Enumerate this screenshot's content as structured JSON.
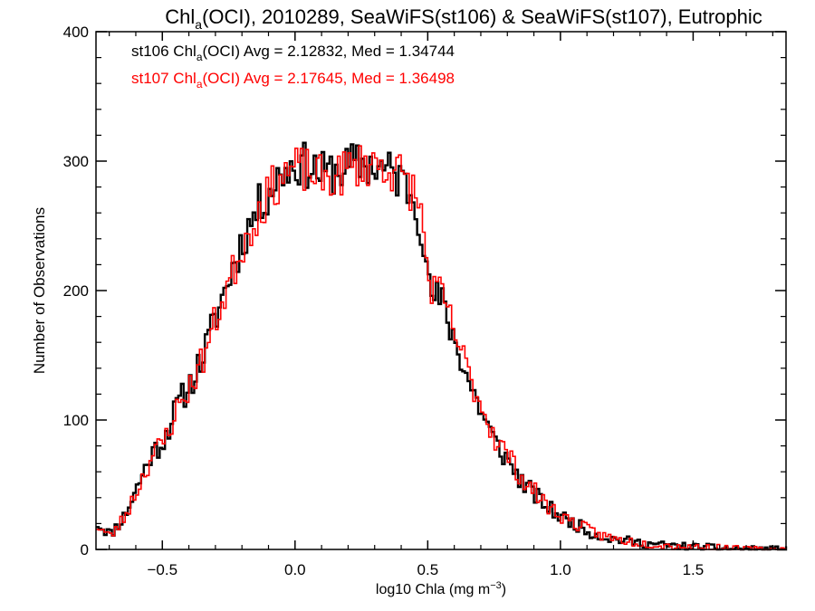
{
  "chart_data": {
    "type": "line",
    "title": "Chlₐ(OCI), 2010289, SeaWiFS(st106) & SeaWiFS(st107), Eutrophic",
    "title_parts": {
      "before_sub": "Chl",
      "sub": "a",
      "after_sub": "(OCI), 2010289, SeaWiFS(st106) & SeaWiFS(st107), Eutrophic"
    },
    "xlabel": "log10 Chla (mg m⁻³)",
    "xlabel_parts": {
      "base": "log10 Chla (mg m",
      "sup": "−3",
      "close": ")"
    },
    "ylabel": "Number of Observations",
    "xlim": [
      -0.75,
      1.85
    ],
    "ylim": [
      0,
      400
    ],
    "xticks": [
      -0.5,
      0.0,
      0.5,
      1.0,
      1.5
    ],
    "xtick_labels": [
      "−0.5",
      "0.0",
      "0.5",
      "1.0",
      "1.5"
    ],
    "yticks": [
      0,
      100,
      200,
      300,
      400
    ],
    "ytick_labels": [
      "0",
      "100",
      "200",
      "300",
      "400"
    ],
    "step": 0.01,
    "colors": {
      "st106": "#000000",
      "st107": "#ff0000"
    },
    "series": [
      {
        "name": "st106",
        "stats_text": {
          "before_sub": "st106 Chl",
          "sub": "a",
          "after_sub": "(OCI) Avg = 2.12832, Med = 1.34744"
        },
        "anchors": [
          [
            -0.75,
            20
          ],
          [
            -0.7,
            12
          ],
          [
            -0.65,
            25
          ],
          [
            -0.6,
            48
          ],
          [
            -0.55,
            72
          ],
          [
            -0.5,
            85
          ],
          [
            -0.45,
            110
          ],
          [
            -0.4,
            128
          ],
          [
            -0.35,
            150
          ],
          [
            -0.3,
            182
          ],
          [
            -0.25,
            212
          ],
          [
            -0.2,
            240
          ],
          [
            -0.15,
            262
          ],
          [
            -0.1,
            278
          ],
          [
            -0.05,
            292
          ],
          [
            0.0,
            298
          ],
          [
            0.05,
            296
          ],
          [
            0.1,
            290
          ],
          [
            0.15,
            292
          ],
          [
            0.2,
            296
          ],
          [
            0.25,
            298
          ],
          [
            0.3,
            296
          ],
          [
            0.35,
            292
          ],
          [
            0.4,
            285
          ],
          [
            0.45,
            270
          ],
          [
            0.48,
            240
          ],
          [
            0.5,
            200
          ],
          [
            0.55,
            190
          ],
          [
            0.6,
            160
          ],
          [
            0.65,
            130
          ],
          [
            0.7,
            105
          ],
          [
            0.75,
            82
          ],
          [
            0.8,
            68
          ],
          [
            0.85,
            52
          ],
          [
            0.9,
            42
          ],
          [
            0.95,
            32
          ],
          [
            1.0,
            25
          ],
          [
            1.05,
            20
          ],
          [
            1.1,
            14
          ],
          [
            1.15,
            10
          ],
          [
            1.2,
            8
          ],
          [
            1.3,
            5
          ],
          [
            1.4,
            3
          ],
          [
            1.5,
            2
          ],
          [
            1.6,
            1
          ],
          [
            1.7,
            0
          ],
          [
            1.85,
            0
          ]
        ],
        "noise": 18,
        "seed": 11
      },
      {
        "name": "st107",
        "stats_text": {
          "before_sub": "st107 Chl",
          "sub": "a",
          "after_sub": "(OCI) Avg = 2.17645, Med = 1.36498"
        },
        "anchors": [
          [
            -0.75,
            18
          ],
          [
            -0.7,
            10
          ],
          [
            -0.65,
            24
          ],
          [
            -0.6,
            46
          ],
          [
            -0.55,
            70
          ],
          [
            -0.5,
            83
          ],
          [
            -0.45,
            108
          ],
          [
            -0.4,
            126
          ],
          [
            -0.35,
            148
          ],
          [
            -0.3,
            180
          ],
          [
            -0.25,
            208
          ],
          [
            -0.2,
            236
          ],
          [
            -0.15,
            258
          ],
          [
            -0.1,
            276
          ],
          [
            -0.05,
            290
          ],
          [
            0.0,
            294
          ],
          [
            0.05,
            292
          ],
          [
            0.1,
            286
          ],
          [
            0.15,
            288
          ],
          [
            0.2,
            294
          ],
          [
            0.25,
            298
          ],
          [
            0.3,
            298
          ],
          [
            0.35,
            295
          ],
          [
            0.4,
            288
          ],
          [
            0.45,
            274
          ],
          [
            0.48,
            248
          ],
          [
            0.5,
            205
          ],
          [
            0.55,
            195
          ],
          [
            0.6,
            165
          ],
          [
            0.65,
            135
          ],
          [
            0.7,
            110
          ],
          [
            0.75,
            86
          ],
          [
            0.8,
            72
          ],
          [
            0.85,
            55
          ],
          [
            0.9,
            44
          ],
          [
            0.95,
            33
          ],
          [
            1.0,
            26
          ],
          [
            1.05,
            20
          ],
          [
            1.1,
            15
          ],
          [
            1.15,
            11
          ],
          [
            1.2,
            8
          ],
          [
            1.3,
            5
          ],
          [
            1.4,
            3
          ],
          [
            1.5,
            2
          ],
          [
            1.6,
            1
          ],
          [
            1.7,
            0
          ],
          [
            1.85,
            0
          ]
        ],
        "noise": 18,
        "seed": 23
      }
    ]
  }
}
